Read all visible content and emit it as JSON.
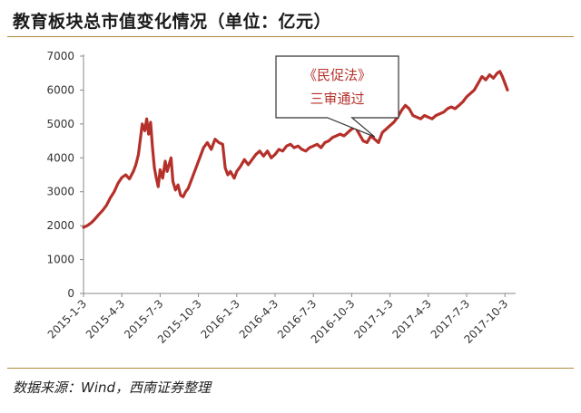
{
  "page": {
    "title": "教育板块总市值变化情况（单位：亿元）",
    "source": "数据来源：Wind，西南证券整理"
  },
  "chart_data": {
    "type": "line",
    "title": "教育板块总市值变化情况（单位：亿元）",
    "unit": "亿元",
    "ylim": [
      0,
      7000
    ],
    "yticks": [
      0,
      1000,
      2000,
      3000,
      4000,
      5000,
      6000,
      7000
    ],
    "xtick_labels": [
      "2015-1-3",
      "2015-4-3",
      "2015-7-3",
      "2015-10-3",
      "2016-1-3",
      "2016-4-3",
      "2016-7-3",
      "2016-10-3",
      "2017-1-3",
      "2017-4-3",
      "2017-7-3",
      "2017-10-3"
    ],
    "grid": false,
    "line_color": "#b5302a",
    "annotation": {
      "line1": "《民促法》",
      "line2": "三审通过",
      "x_month": 22.8,
      "y": 4620
    },
    "series": [
      {
        "points": [
          [
            0,
            1950
          ],
          [
            0.3,
            2000
          ],
          [
            0.6,
            2080
          ],
          [
            0.9,
            2200
          ],
          [
            1.2,
            2330
          ],
          [
            1.5,
            2450
          ],
          [
            1.8,
            2600
          ],
          [
            2.1,
            2820
          ],
          [
            2.4,
            3000
          ],
          [
            2.7,
            3250
          ],
          [
            3.0,
            3420
          ],
          [
            3.3,
            3500
          ],
          [
            3.6,
            3380
          ],
          [
            3.9,
            3600
          ],
          [
            4.1,
            3800
          ],
          [
            4.3,
            4100
          ],
          [
            4.5,
            4700
          ],
          [
            4.6,
            5000
          ],
          [
            4.8,
            4800
          ],
          [
            4.95,
            5150
          ],
          [
            5.1,
            4700
          ],
          [
            5.25,
            5050
          ],
          [
            5.4,
            4300
          ],
          [
            5.55,
            3700
          ],
          [
            5.7,
            3400
          ],
          [
            5.85,
            3150
          ],
          [
            6.0,
            3650
          ],
          [
            6.2,
            3400
          ],
          [
            6.4,
            3900
          ],
          [
            6.55,
            3600
          ],
          [
            6.7,
            3800
          ],
          [
            6.85,
            4000
          ],
          [
            7.0,
            3300
          ],
          [
            7.2,
            3050
          ],
          [
            7.4,
            3200
          ],
          [
            7.6,
            2900
          ],
          [
            7.8,
            2850
          ],
          [
            8.0,
            3000
          ],
          [
            8.2,
            3100
          ],
          [
            8.5,
            3400
          ],
          [
            8.8,
            3700
          ],
          [
            9.1,
            4000
          ],
          [
            9.4,
            4300
          ],
          [
            9.7,
            4450
          ],
          [
            10.0,
            4250
          ],
          [
            10.3,
            4550
          ],
          [
            10.6,
            4450
          ],
          [
            10.9,
            4400
          ],
          [
            11.1,
            3700
          ],
          [
            11.3,
            3500
          ],
          [
            11.5,
            3600
          ],
          [
            11.8,
            3400
          ],
          [
            12.0,
            3600
          ],
          [
            12.3,
            3750
          ],
          [
            12.6,
            3950
          ],
          [
            12.9,
            3800
          ],
          [
            13.2,
            3950
          ],
          [
            13.5,
            4100
          ],
          [
            13.8,
            4200
          ],
          [
            14.1,
            4050
          ],
          [
            14.4,
            4200
          ],
          [
            14.7,
            4000
          ],
          [
            15.0,
            4100
          ],
          [
            15.3,
            4250
          ],
          [
            15.6,
            4200
          ],
          [
            15.9,
            4350
          ],
          [
            16.2,
            4400
          ],
          [
            16.5,
            4300
          ],
          [
            16.8,
            4350
          ],
          [
            17.1,
            4250
          ],
          [
            17.4,
            4200
          ],
          [
            17.7,
            4300
          ],
          [
            18.0,
            4350
          ],
          [
            18.3,
            4400
          ],
          [
            18.6,
            4300
          ],
          [
            18.9,
            4450
          ],
          [
            19.2,
            4500
          ],
          [
            19.5,
            4600
          ],
          [
            19.8,
            4650
          ],
          [
            20.1,
            4700
          ],
          [
            20.4,
            4650
          ],
          [
            20.7,
            4750
          ],
          [
            21.0,
            4850
          ],
          [
            21.3,
            4900
          ],
          [
            21.6,
            4700
          ],
          [
            21.9,
            4500
          ],
          [
            22.2,
            4450
          ],
          [
            22.5,
            4650
          ],
          [
            22.8,
            4550
          ],
          [
            23.1,
            4450
          ],
          [
            23.4,
            4750
          ],
          [
            23.7,
            4850
          ],
          [
            24.0,
            4950
          ],
          [
            24.3,
            5050
          ],
          [
            24.6,
            5200
          ],
          [
            24.9,
            5400
          ],
          [
            25.2,
            5550
          ],
          [
            25.5,
            5450
          ],
          [
            25.8,
            5250
          ],
          [
            26.1,
            5200
          ],
          [
            26.4,
            5150
          ],
          [
            26.7,
            5250
          ],
          [
            27.0,
            5200
          ],
          [
            27.3,
            5150
          ],
          [
            27.6,
            5250
          ],
          [
            27.9,
            5300
          ],
          [
            28.2,
            5350
          ],
          [
            28.5,
            5450
          ],
          [
            28.8,
            5500
          ],
          [
            29.1,
            5450
          ],
          [
            29.4,
            5550
          ],
          [
            29.7,
            5650
          ],
          [
            30.0,
            5800
          ],
          [
            30.3,
            5900
          ],
          [
            30.6,
            6000
          ],
          [
            30.9,
            6200
          ],
          [
            31.2,
            6400
          ],
          [
            31.5,
            6300
          ],
          [
            31.8,
            6450
          ],
          [
            32.1,
            6350
          ],
          [
            32.4,
            6500
          ],
          [
            32.6,
            6550
          ],
          [
            32.8,
            6400
          ],
          [
            33.0,
            6200
          ],
          [
            33.2,
            6000
          ]
        ]
      }
    ]
  }
}
